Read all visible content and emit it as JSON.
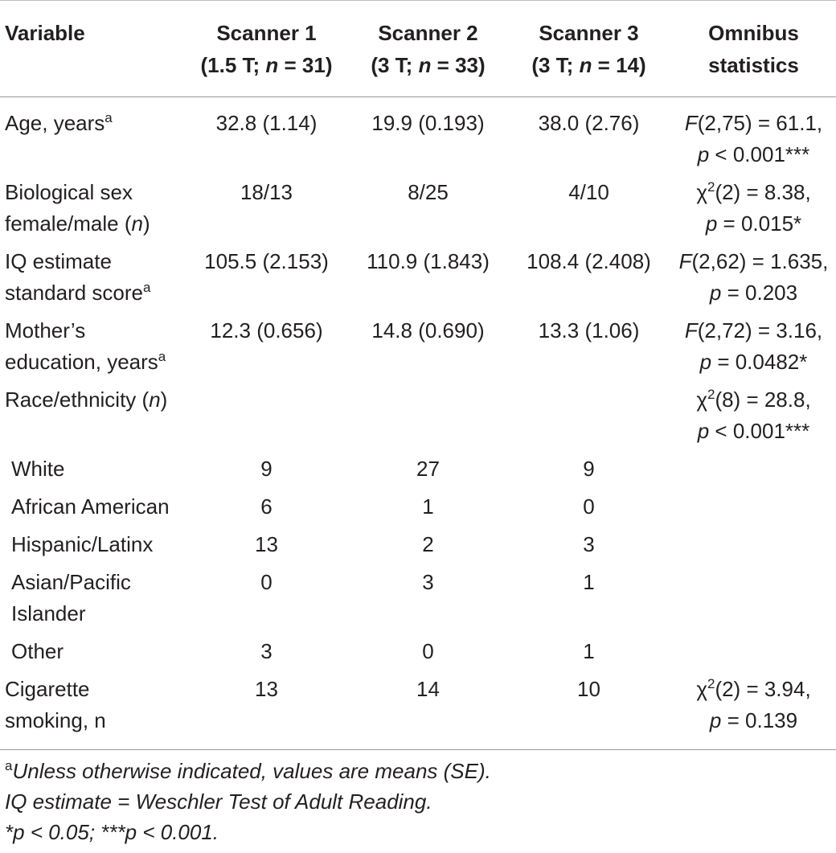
{
  "table": {
    "header": [
      [
        "Variable"
      ],
      [
        "Scanner 1",
        "(1.5 T; ",
        "n",
        " = 31)"
      ],
      [
        "Scanner 2",
        "(3 T; ",
        "n",
        " = 33)"
      ],
      [
        "Scanner 3",
        "(3 T; ",
        "n",
        " = 14)"
      ],
      [
        "Omnibus",
        "statistics"
      ]
    ],
    "rows": [
      [
        [
          "Age, years",
          "a"
        ],
        [
          "32.8 (1.14)"
        ],
        [
          "19.9 (0.193)"
        ],
        [
          "38.0 (2.76)"
        ],
        [
          "F",
          "(2,75) = 61.1,",
          "p",
          " < 0.001***"
        ]
      ],
      [
        [
          "Biological sex",
          "female/male (",
          "n",
          ")"
        ],
        [
          "18/13"
        ],
        [
          "8/25"
        ],
        [
          "4/10"
        ],
        [
          "χ",
          "2",
          "(2) = 8.38,",
          "p",
          " = 0.015*"
        ]
      ],
      [
        [
          "IQ estimate",
          "standard score",
          "a"
        ],
        [
          "105.5 (2.153)"
        ],
        [
          "110.9 (1.843)"
        ],
        [
          "108.4 (2.408)"
        ],
        [
          "F",
          "(2,62) = 1.635,",
          "p",
          " = 0.203"
        ]
      ],
      [
        [
          "Mother’s",
          "education, years",
          "a"
        ],
        [
          "12.3 (0.656)"
        ],
        [
          "14.8 (0.690)"
        ],
        [
          "13.3 (1.06)"
        ],
        [
          "F",
          "(2,72) = 3.16,",
          "p",
          " = 0.0482*"
        ]
      ],
      [
        [
          "Race/ethnicity (",
          "n",
          ")"
        ],
        [],
        [],
        [],
        [
          "χ",
          "2",
          "(8) = 28.8,",
          "p",
          " < 0.001***"
        ]
      ],
      [
        [
          "White"
        ],
        [
          "9"
        ],
        [
          "27"
        ],
        [
          "9"
        ],
        []
      ],
      [
        [
          "African American"
        ],
        [
          "6"
        ],
        [
          "1"
        ],
        [
          "0"
        ],
        []
      ],
      [
        [
          "Hispanic/Latinx"
        ],
        [
          "13"
        ],
        [
          "2"
        ],
        [
          "3"
        ],
        []
      ],
      [
        [
          "Asian/Pacific",
          "Islander"
        ],
        [
          "0"
        ],
        [
          "3"
        ],
        [
          "1"
        ],
        []
      ],
      [
        [
          "Other"
        ],
        [
          "3"
        ],
        [
          "0"
        ],
        [
          "1"
        ],
        []
      ],
      [
        [
          "Cigarette",
          "smoking, n"
        ],
        [
          "13"
        ],
        [
          "14"
        ],
        [
          "10"
        ],
        [
          "χ",
          "2",
          "(2) = 3.94,",
          "p",
          " = 0.139"
        ]
      ]
    ]
  },
  "footnotes": [
    [
      "a",
      "Unless otherwise indicated, values are means (SE)."
    ],
    [
      "IQ estimate = Weschler Test of Adult Reading."
    ],
    [
      "*",
      "p",
      " < 0.05; ***",
      "p",
      " < 0.001."
    ]
  ]
}
